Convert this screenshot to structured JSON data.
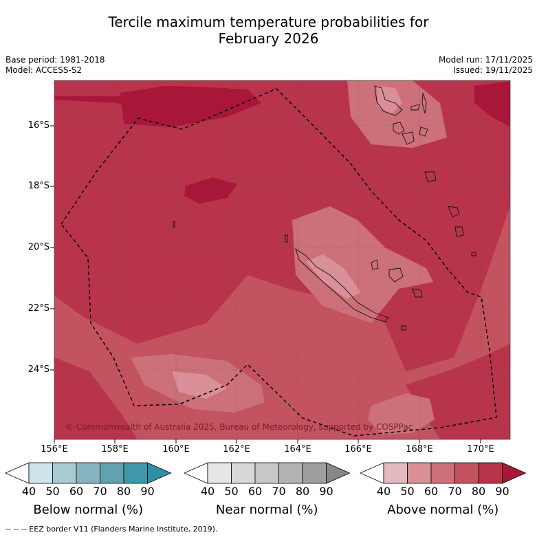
{
  "title_line1": "Tercile maximum temperature probabilities for",
  "title_line2": "February 2026",
  "base_period": "Base period: 1981-2018",
  "model": "Model: ACCESS-S2",
  "model_run": "Model run: 17/11/2025",
  "issued": "Issued: 19/11/2025",
  "lat_labels": [
    "16°S",
    "18°S",
    "20°S",
    "22°S",
    "24°S"
  ],
  "lon_labels": [
    "156°E",
    "158°E",
    "160°E",
    "162°E",
    "164°E",
    "166°E",
    "168°E",
    "170°E"
  ],
  "copyright": "© Commonwealth of Australia 2025, Bureau of Meteorology, supported by COSPPac",
  "colorbars": [
    {
      "label": "Below normal (%)",
      "ticks": [
        "40",
        "50",
        "60",
        "70",
        "80",
        "90"
      ],
      "colors": [
        "#ffffff",
        "#cfe4ea",
        "#a8cbd2",
        "#86b5c0",
        "#62a2b0",
        "#3f98a9",
        "#2f8fa3"
      ]
    },
    {
      "label": "Near normal (%)",
      "ticks": [
        "40",
        "50",
        "60",
        "70",
        "80",
        "90"
      ],
      "colors": [
        "#ffffff",
        "#e6e6e6",
        "#d8d8d8",
        "#c8c8c8",
        "#b4b4b4",
        "#9e9e9e",
        "#888888"
      ]
    },
    {
      "label": "Above normal (%)",
      "ticks": [
        "40",
        "50",
        "60",
        "70",
        "80",
        "90"
      ],
      "colors": [
        "#ffffff",
        "#e4b9bf",
        "#d99098",
        "#cc7079",
        "#c2535f",
        "#b8344a",
        "#a8173a"
      ]
    }
  ],
  "footer": "--  --  -- EEZ border V11 (Flanders Marine Institute, 2019)."
}
